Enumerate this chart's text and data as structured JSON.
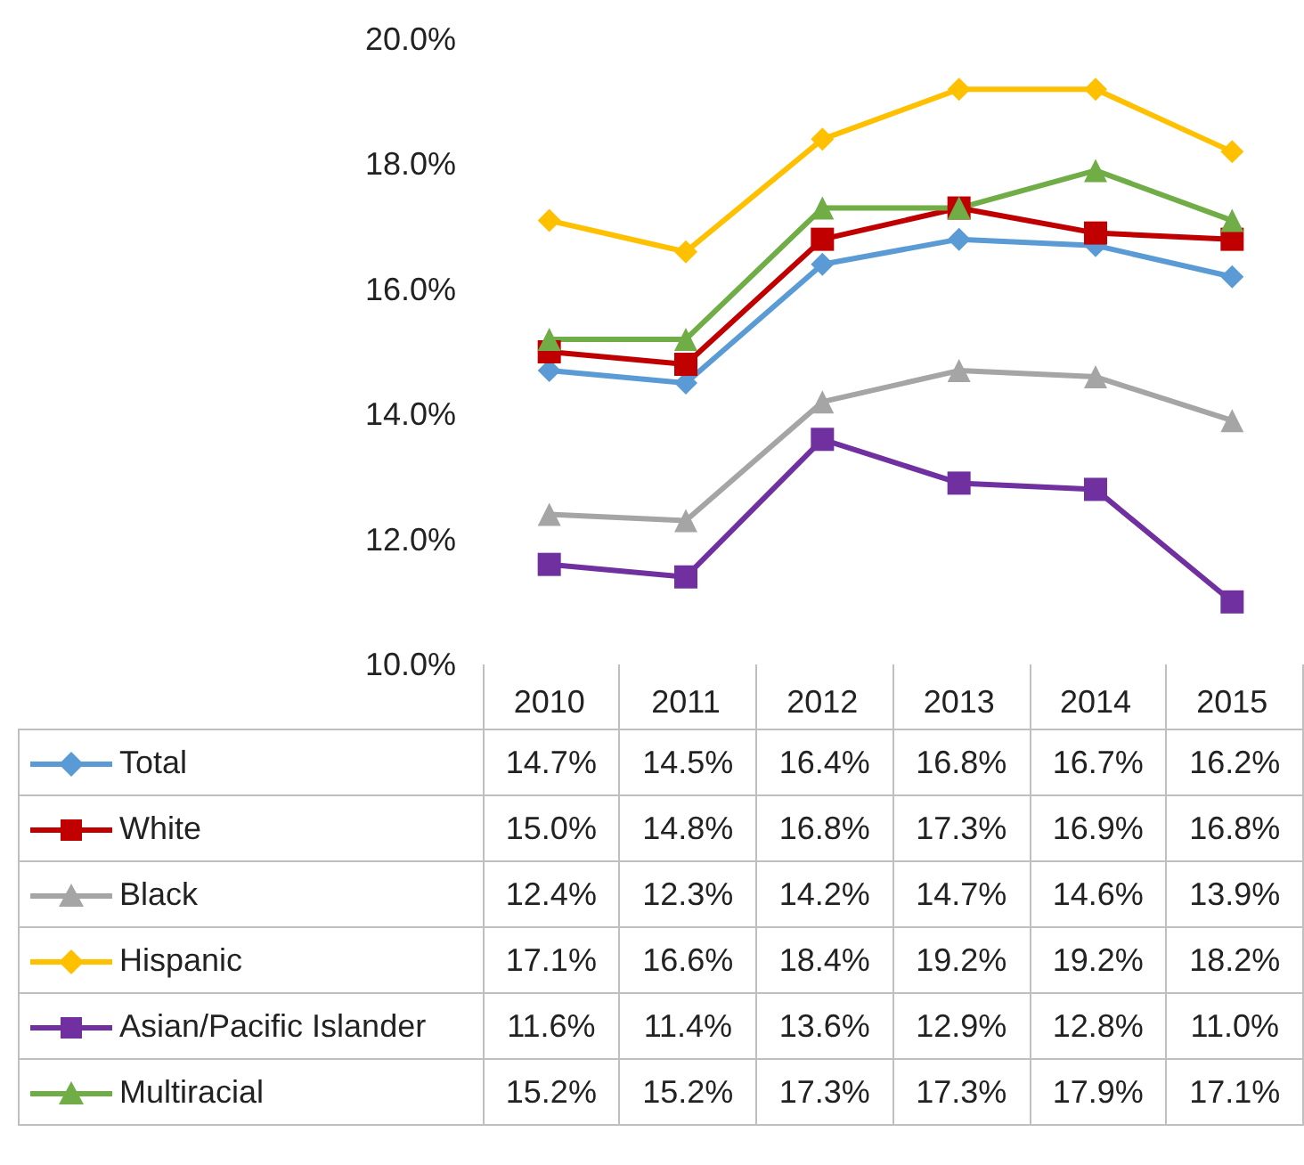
{
  "chart_data": {
    "type": "line",
    "categories": [
      "2010",
      "2011",
      "2012",
      "2013",
      "2014",
      "2015"
    ],
    "series": [
      {
        "name": "Total",
        "color": "#5b9bd5",
        "marker": "diamond",
        "values": [
          14.7,
          14.5,
          16.4,
          16.8,
          16.7,
          16.2
        ],
        "value_labels": [
          "14.7%",
          "14.5%",
          "16.4%",
          "16.8%",
          "16.7%",
          "16.2%"
        ]
      },
      {
        "name": "White",
        "color": "#c00000",
        "marker": "square",
        "values": [
          15.0,
          14.8,
          16.8,
          17.3,
          16.9,
          16.8
        ],
        "value_labels": [
          "15.0%",
          "14.8%",
          "16.8%",
          "17.3%",
          "16.9%",
          "16.8%"
        ]
      },
      {
        "name": "Black",
        "color": "#a5a5a5",
        "marker": "triangle",
        "values": [
          12.4,
          12.3,
          14.2,
          14.7,
          14.6,
          13.9
        ],
        "value_labels": [
          "12.4%",
          "12.3%",
          "14.2%",
          "14.7%",
          "14.6%",
          "13.9%"
        ]
      },
      {
        "name": "Hispanic",
        "color": "#ffc000",
        "marker": "diamond",
        "values": [
          17.1,
          16.6,
          18.4,
          19.2,
          19.2,
          18.2
        ],
        "value_labels": [
          "17.1%",
          "16.6%",
          "18.4%",
          "19.2%",
          "19.2%",
          "18.2%"
        ]
      },
      {
        "name": "Asian/Pacific Islander",
        "color": "#7030a0",
        "marker": "square",
        "values": [
          11.6,
          11.4,
          13.6,
          12.9,
          12.8,
          11.0
        ],
        "value_labels": [
          "11.6%",
          "11.4%",
          "13.6%",
          "12.9%",
          "12.8%",
          "11.0%"
        ]
      },
      {
        "name": "Multiracial",
        "color": "#70ad47",
        "marker": "triangle",
        "values": [
          15.2,
          15.2,
          17.3,
          17.3,
          17.9,
          17.1
        ],
        "value_labels": [
          "15.2%",
          "15.2%",
          "17.3%",
          "17.3%",
          "17.9%",
          "17.1%"
        ]
      }
    ],
    "ylim": [
      10,
      20
    ],
    "yticks": [
      {
        "value": 10,
        "label": "10.0%"
      },
      {
        "value": 12,
        "label": "12.0%"
      },
      {
        "value": 14,
        "label": "14.0%"
      },
      {
        "value": 16,
        "label": "16.0%"
      },
      {
        "value": 18,
        "label": "18.0%"
      },
      {
        "value": 20,
        "label": "20.0%"
      }
    ],
    "legend": "bottom"
  }
}
